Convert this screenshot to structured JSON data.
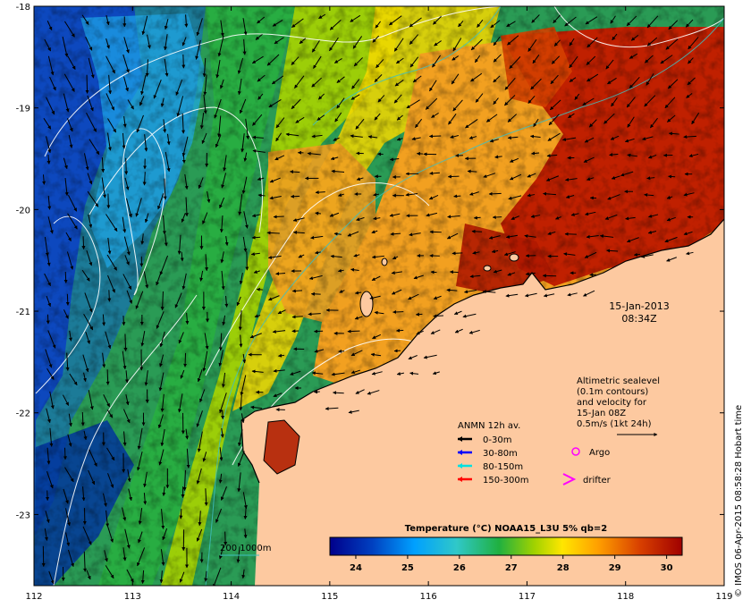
{
  "map": {
    "date_line1": "15-Jan-2013",
    "date_line2": "08:34Z",
    "x_ticks": [
      "112",
      "113",
      "114",
      "115",
      "116",
      "117",
      "118",
      "119"
    ],
    "y_ticks": [
      "-18",
      "-19",
      "-20",
      "-21",
      "-22",
      "-23"
    ],
    "lon_range": [
      112,
      119
    ],
    "lat_range": [
      -23.7,
      -18.0
    ],
    "credit": "© IMOS 06-Apr-2015 08:58:28 Hobart time",
    "ocean_colormap": [
      "#00008b",
      "#0050c8",
      "#00b4ff",
      "#3cc8a0",
      "#28b43c",
      "#a0d200",
      "#ffe600",
      "#ffa000",
      "#e05000",
      "#b40000"
    ],
    "land_color": "#fdc9a0"
  },
  "altimetry": {
    "line1": "Altimetric sealevel",
    "line2": "(0.1m contours)",
    "line3": "and velocity for",
    "line4": "15-Jan 08Z",
    "line5": "0.5m/s (1kt 24h)"
  },
  "legend": {
    "title": "ANMN 12h av.",
    "items": [
      {
        "label": "0-30m",
        "color": "#000000"
      },
      {
        "label": "30-80m",
        "color": "#0000ff"
      },
      {
        "label": "80-150m",
        "color": "#00e0e0"
      },
      {
        "label": "150-300m",
        "color": "#ff0000"
      }
    ],
    "argo_label": "Argo",
    "argo_color": "#ff00ff",
    "drifter_label": "drifter",
    "drifter_color": "#ff00ff"
  },
  "isobath": {
    "label": "200  1000m",
    "color": "#40c0c0"
  },
  "colorbar": {
    "title": "Temperature (°C) NOAA15_L3U 5% qb=2",
    "ticks": [
      "24",
      "25",
      "26",
      "27",
      "28",
      "29",
      "30"
    ],
    "range": [
      23.5,
      30.3
    ]
  }
}
